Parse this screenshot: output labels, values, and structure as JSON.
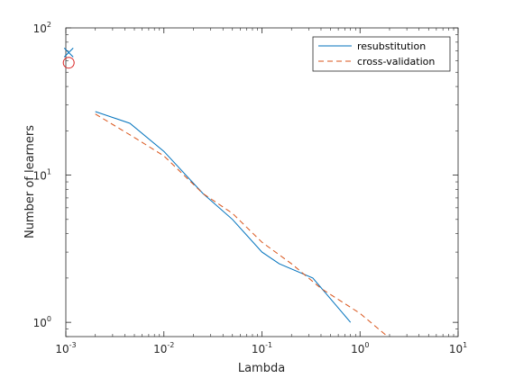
{
  "chart_data": {
    "type": "line",
    "title": "",
    "xlabel": "Lambda",
    "ylabel": "Number of learners",
    "xscale": "log",
    "yscale": "log",
    "xlim": [
      0.001,
      10
    ],
    "ylim": [
      0.8,
      100
    ],
    "grid": false,
    "legend": {
      "placement": "top-right"
    },
    "x_ticks": [
      {
        "base": "10",
        "exp": "-3"
      },
      {
        "base": "10",
        "exp": "-2"
      },
      {
        "base": "10",
        "exp": "-1"
      },
      {
        "base": "10",
        "exp": "0"
      },
      {
        "base": "10",
        "exp": "1"
      }
    ],
    "y_ticks": [
      {
        "base": "10",
        "exp": "0"
      },
      {
        "base": "10",
        "exp": "1"
      },
      {
        "base": "10",
        "exp": "2"
      }
    ],
    "series": [
      {
        "name": "resubstitution",
        "color": "#0072BD",
        "style": "solid",
        "x": [
          0.002,
          0.0045,
          0.01,
          0.025,
          0.05,
          0.1,
          0.15,
          0.33,
          0.8
        ],
        "y": [
          27,
          22.5,
          14.5,
          7.5,
          5,
          3,
          2.5,
          2,
          1
        ]
      },
      {
        "name": "cross-validation",
        "color": "#D95319",
        "style": "dashed",
        "x": [
          0.002,
          0.005,
          0.01,
          0.025,
          0.05,
          0.1,
          0.2,
          0.4,
          1,
          2
        ],
        "y": [
          26,
          18,
          13.5,
          7.5,
          5.5,
          3.5,
          2.5,
          1.7,
          1.15,
          0.78
        ]
      }
    ],
    "markers": [
      {
        "type": "x",
        "x": 0.00107,
        "y": 68,
        "color": "#0072BD"
      },
      {
        "type": "circle",
        "x": 0.00107,
        "y": 58,
        "color": "#D92020"
      }
    ]
  }
}
